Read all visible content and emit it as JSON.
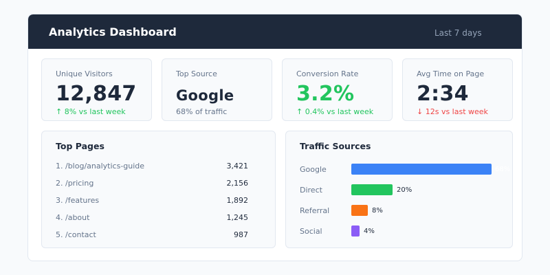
{
  "header": {
    "title": "Analytics Dashboard",
    "range": "Last 7 days"
  },
  "cards": [
    {
      "label": "Unique Visitors",
      "value": "12,847",
      "delta": "↑ 8% vs last week"
    },
    {
      "label": "Top Source",
      "value": "Google",
      "delta": "68% of traffic"
    },
    {
      "label": "Conversion Rate",
      "value": "3.2%",
      "delta": "↑ 0.4% vs last week"
    },
    {
      "label": "Avg Time on Page",
      "value": "2:34",
      "delta": "↓ 12s vs last week"
    }
  ],
  "top_pages": {
    "title": "Top Pages",
    "rows": [
      {
        "page": "1. /blog/analytics-guide",
        "views": "3,421"
      },
      {
        "page": "2. /pricing",
        "views": "2,156"
      },
      {
        "page": "3. /features",
        "views": "1,892"
      },
      {
        "page": "4. /about",
        "views": "1,245"
      },
      {
        "page": "5. /contact",
        "views": "987"
      }
    ]
  },
  "traffic_sources": {
    "title": "Traffic Sources",
    "items": [
      {
        "name": "Google",
        "percent": 68,
        "percent_label": "68%",
        "color": "#3b82f6"
      },
      {
        "name": "Direct",
        "percent": 20,
        "percent_label": "20%",
        "color": "#22c55e"
      },
      {
        "name": "Referral",
        "percent": 8,
        "percent_label": "8%",
        "color": "#f97316"
      },
      {
        "name": "Social",
        "percent": 4,
        "percent_label": "4%",
        "color": "#8b5cf6"
      }
    ]
  },
  "colors": {
    "header_bg": "#1e293b",
    "positive": "#22c55e",
    "negative": "#ef4444",
    "muted": "#64748b"
  }
}
